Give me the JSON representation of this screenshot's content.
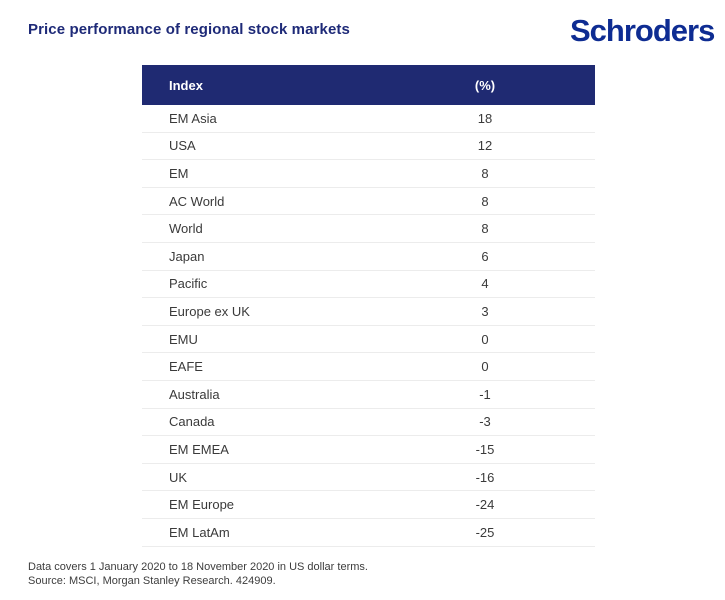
{
  "page": {
    "title": "Price performance of regional stock markets",
    "logo": "Schroders"
  },
  "colors": {
    "header_bar": "#1f2a72",
    "title_text": "#1e2a78",
    "logo_text": "#0e2c92",
    "row_text": "#3a3a3a",
    "row_separator": "#ececec",
    "header_text": "#ffffff",
    "background": "#ffffff"
  },
  "table": {
    "columns": [
      "Index",
      "(%)"
    ],
    "rows": [
      {
        "index": "EM Asia",
        "value": "18"
      },
      {
        "index": "USA",
        "value": "12"
      },
      {
        "index": "EM",
        "value": "8"
      },
      {
        "index": "AC World",
        "value": "8"
      },
      {
        "index": "World",
        "value": "8"
      },
      {
        "index": "Japan",
        "value": "6"
      },
      {
        "index": "Pacific",
        "value": "4"
      },
      {
        "index": "Europe ex UK",
        "value": "3"
      },
      {
        "index": "EMU",
        "value": "0"
      },
      {
        "index": "EAFE",
        "value": "0"
      },
      {
        "index": "Australia",
        "value": "-1"
      },
      {
        "index": "Canada",
        "value": "-3"
      },
      {
        "index": "EM EMEA",
        "value": "-15"
      },
      {
        "index": "UK",
        "value": "-16"
      },
      {
        "index": "EM Europe",
        "value": "-24"
      },
      {
        "index": "EM LatAm",
        "value": "-25"
      }
    ]
  },
  "footer": {
    "line1": "Data covers 1 January 2020 to 18 November 2020 in US dollar terms.",
    "line2": "Source: MSCI, Morgan Stanley Research. 424909."
  },
  "chart_data": {
    "type": "table",
    "title": "Price performance of regional stock markets",
    "columns": [
      "Index",
      "(%)"
    ],
    "categories": [
      "EM Asia",
      "USA",
      "EM",
      "AC World",
      "World",
      "Japan",
      "Pacific",
      "Europe ex UK",
      "EMU",
      "EAFE",
      "Australia",
      "Canada",
      "EM EMEA",
      "UK",
      "EM Europe",
      "EM LatAm"
    ],
    "values": [
      18,
      12,
      8,
      8,
      8,
      6,
      4,
      3,
      0,
      0,
      -1,
      -3,
      -15,
      -16,
      -24,
      -25
    ],
    "unit": "%",
    "source_note": "Data covers 1 January 2020 to 18 November 2020 in US dollar terms. Source: MSCI, Morgan Stanley Research. 424909."
  }
}
